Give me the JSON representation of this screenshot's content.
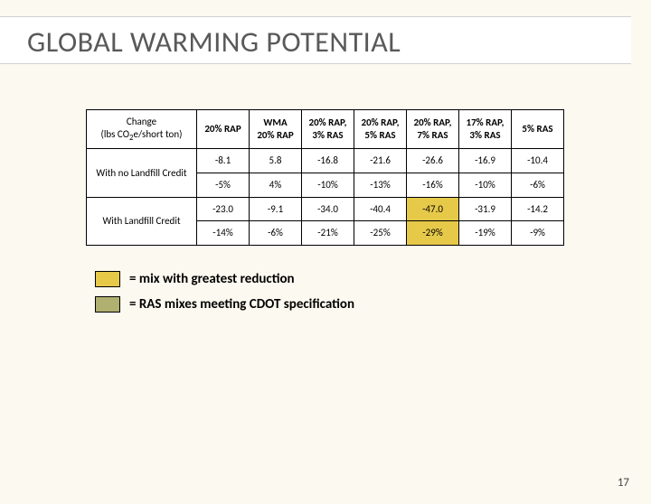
{
  "title": "GLOBAL WARMING POTENTIAL",
  "table": {
    "header_label_line1": "Change",
    "header_label_line2_pre": "(lbs CO",
    "header_label_line2_sub": "2",
    "header_label_line2_post": "e/short ton)",
    "columns": [
      "20% RAP",
      "WMA\n20% RAP",
      "20% RAP,\n3% RAS",
      "20% RAP,\n5% RAS",
      "20% RAP,\n7% RAS",
      "17% RAP,\n3% RAS",
      "5% RAS"
    ],
    "groups": [
      {
        "label": "With no Landfill Credit",
        "rows": [
          {
            "cells": [
              {
                "v": "-8.1"
              },
              {
                "v": "5.8"
              },
              {
                "v": "-16.8"
              },
              {
                "v": "-21.6"
              },
              {
                "v": "-26.6"
              },
              {
                "v": "-16.9"
              },
              {
                "v": "-10.4"
              }
            ]
          },
          {
            "cells": [
              {
                "v": "-5%"
              },
              {
                "v": "4%"
              },
              {
                "v": "-10%"
              },
              {
                "v": "-13%"
              },
              {
                "v": "-16%"
              },
              {
                "v": "-10%"
              },
              {
                "v": "-6%"
              }
            ]
          }
        ]
      },
      {
        "label": "With  Landfill Credit",
        "rows": [
          {
            "cells": [
              {
                "v": "-23.0"
              },
              {
                "v": "-9.1"
              },
              {
                "v": "-34.0"
              },
              {
                "v": "-40.4"
              },
              {
                "v": "-47.0",
                "hl": "yellow"
              },
              {
                "v": "-31.9"
              },
              {
                "v": "-14.2"
              }
            ]
          },
          {
            "cells": [
              {
                "v": "-14%"
              },
              {
                "v": "-6%"
              },
              {
                "v": "-21%"
              },
              {
                "v": "-25%"
              },
              {
                "v": "-29%",
                "hl": "yellow"
              },
              {
                "v": "-19%"
              },
              {
                "v": "-9%"
              }
            ]
          }
        ]
      }
    ]
  },
  "legend": {
    "yellow": "= mix with greatest reduction",
    "olive": "= RAS mixes meeting CDOT specification"
  },
  "page_number": "17",
  "colors": {
    "yellow": "#e7c94a",
    "olive": "#b0b070",
    "bg": "#fcf9f0"
  }
}
